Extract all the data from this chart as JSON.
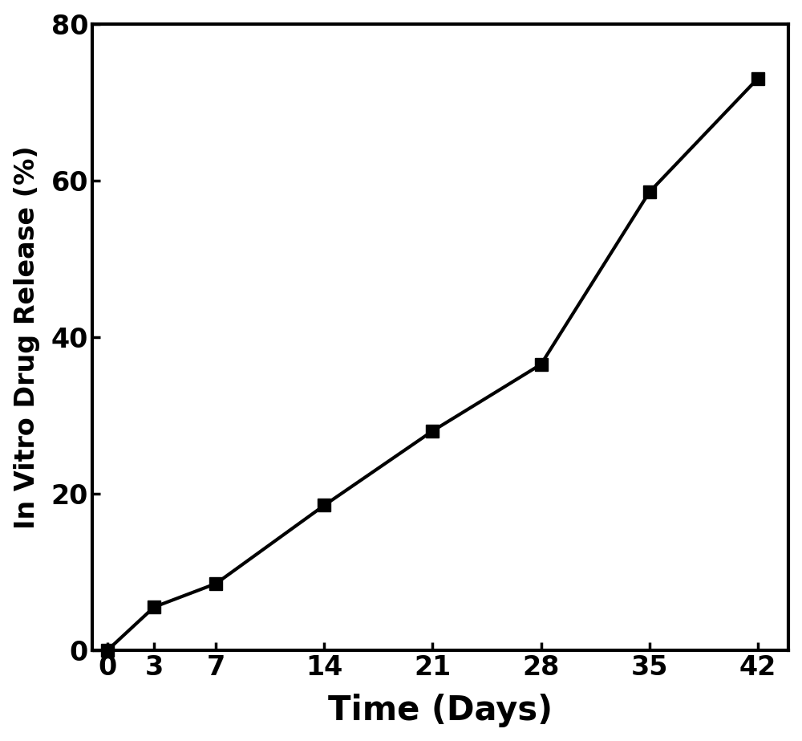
{
  "x": [
    0,
    3,
    7,
    14,
    21,
    28,
    35,
    42
  ],
  "y": [
    0,
    5.5,
    8.5,
    18.5,
    28.0,
    36.5,
    58.5,
    73.0
  ],
  "xlabel": "Time (Days)",
  "ylabel": "In Vitro Drug Release (%)",
  "xlim": [
    -1,
    44
  ],
  "ylim": [
    0,
    80
  ],
  "xticks": [
    0,
    3,
    7,
    14,
    21,
    28,
    35,
    42
  ],
  "yticks": [
    0,
    20,
    40,
    60,
    80
  ],
  "line_color": "#000000",
  "marker": "s",
  "marker_size": 11,
  "line_width": 3.0,
  "xlabel_fontsize": 30,
  "ylabel_fontsize": 24,
  "tick_fontsize": 24,
  "tick_label_fontweight": "bold",
  "axis_label_fontweight": "bold",
  "background_color": "#ffffff",
  "figure_background": "#ffffff"
}
